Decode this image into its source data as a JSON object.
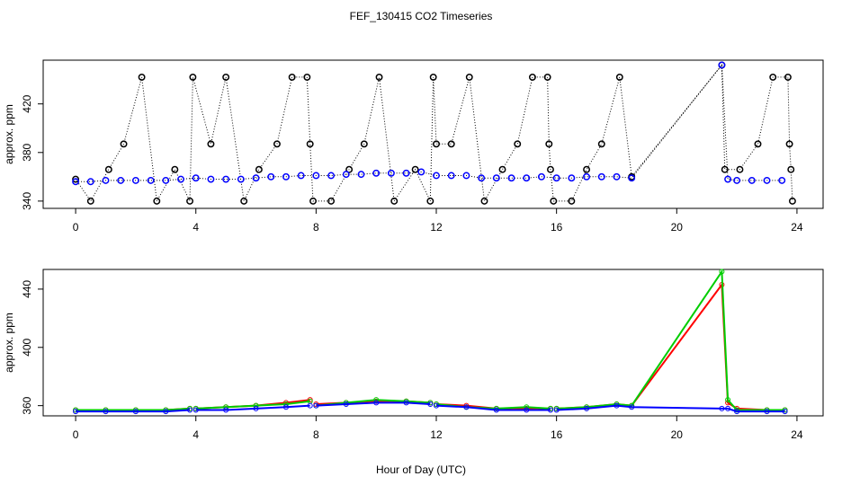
{
  "chart_data": [
    {
      "type": "scatter",
      "title": "FEF_130415  CO2 Timeseries",
      "ylabel": "approx. ppm",
      "xlim": [
        -1.08,
        24.87
      ],
      "ylim": [
        334,
        456
      ],
      "xticks": [
        0,
        4,
        8,
        12,
        16,
        20,
        24
      ],
      "yticks": [
        340,
        380,
        420
      ],
      "series": [
        {
          "color": "#000000",
          "x": [
            0,
            0.5,
            1.1,
            1.6,
            2.2,
            2.7,
            3.3,
            3.8,
            3.9,
            4.5,
            5.0,
            5.6,
            6.1,
            6.7,
            7.2,
            7.7,
            7.8,
            7.9,
            8.5,
            9.1,
            9.6,
            10.1,
            10.6,
            11.3,
            11.8,
            11.9,
            12.0,
            12.5,
            13.1,
            13.6,
            14.2,
            14.7,
            15.2,
            15.7,
            15.75,
            15.8,
            15.9,
            16.5,
            17.0,
            17.5,
            18.1,
            18.5,
            21.5,
            21.6,
            22.1,
            22.7,
            23.2,
            23.7,
            23.75,
            23.8,
            23.85
          ],
          "values": [
            358,
            340,
            366,
            387,
            442,
            340,
            366,
            340,
            442,
            387,
            442,
            340,
            366,
            387,
            442,
            442,
            387,
            340,
            340,
            366,
            387,
            442,
            340,
            366,
            340,
            442,
            387,
            387,
            442,
            340,
            366,
            387,
            442,
            442,
            387,
            366,
            340,
            340,
            366,
            387,
            442,
            360,
            452,
            366,
            366,
            387,
            442,
            442,
            387,
            366,
            340
          ]
        },
        {
          "color": "#0000ff",
          "x": [
            0,
            0.5,
            1,
            1.5,
            2,
            2.5,
            3,
            3.5,
            4,
            4.5,
            5,
            5.5,
            6,
            6.5,
            7,
            7.5,
            8,
            8.5,
            9,
            9.5,
            10,
            10.5,
            11,
            11.5,
            12,
            12.5,
            13,
            13.5,
            14,
            14.5,
            15,
            15.5,
            16,
            16.5,
            17,
            17.5,
            18,
            18.5,
            21.5,
            21.7,
            22,
            22.5,
            23,
            23.5
          ],
          "values": [
            356,
            356,
            357,
            357,
            357,
            357,
            357,
            358,
            359,
            358,
            358,
            358,
            359,
            360,
            360,
            361,
            361,
            361,
            362,
            362,
            363,
            363,
            363,
            364,
            361,
            361,
            361,
            359,
            359,
            359,
            359,
            360,
            359,
            359,
            360,
            360,
            360,
            359,
            452,
            358,
            357,
            357,
            357,
            357
          ]
        }
      ]
    },
    {
      "type": "line",
      "ylabel": "approx. ppm",
      "xlabel": "Hour of Day (UTC)",
      "xlim": [
        -1.08,
        24.87
      ],
      "ylim": [
        353,
        453.5
      ],
      "xticks": [
        0,
        4,
        8,
        12,
        16,
        20,
        24
      ],
      "yticks": [
        360,
        400,
        440
      ],
      "x": [
        0,
        1,
        2,
        3,
        3.8,
        3.9,
        4,
        5,
        6,
        7,
        7.8,
        7.9,
        8,
        9,
        10,
        11,
        11.8,
        11.9,
        12,
        13,
        14,
        15,
        15.8,
        15.9,
        16,
        17,
        18,
        18.5,
        21.5,
        21.7,
        22,
        23,
        23.6
      ],
      "series": [
        {
          "color": "#ff0000",
          "values": [
            357,
            357,
            357,
            357,
            358,
            null,
            358,
            359,
            360,
            362,
            364,
            null,
            361,
            362,
            363,
            363,
            362,
            null,
            361,
            360,
            358,
            358,
            358,
            null,
            358,
            359,
            361,
            360,
            443,
            362,
            358,
            357,
            357
          ]
        },
        {
          "color": "#00cd00",
          "values": [
            357,
            357,
            357,
            357,
            358,
            null,
            358,
            359,
            360,
            361,
            363,
            null,
            360,
            362,
            364,
            363,
            362,
            null,
            361,
            359,
            358,
            359,
            358,
            null,
            358,
            359,
            361,
            360,
            452,
            364,
            357,
            357,
            357
          ]
        },
        {
          "color": "#0000ff",
          "values": [
            356,
            356,
            356,
            356,
            357,
            null,
            357,
            357,
            358,
            359,
            360,
            null,
            360,
            361,
            362,
            362,
            361,
            null,
            360,
            359,
            357,
            357,
            357,
            null,
            357,
            358,
            360,
            359,
            358,
            358,
            356,
            356,
            356
          ]
        }
      ]
    }
  ]
}
